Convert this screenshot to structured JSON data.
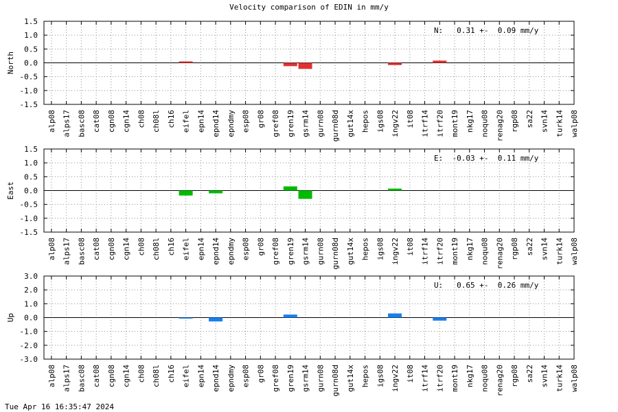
{
  "page": {
    "title": "Velocity comparison of EDIN in mm/y",
    "timestamp": "Tue Apr 16 16:35:47 2024"
  },
  "chart_data": [
    {
      "type": "bar",
      "ylabel": "North",
      "ylim": [
        -1.5,
        1.5
      ],
      "yticks": [
        "1.5",
        "1.0",
        "0.5",
        "0.0",
        "-0.5",
        "-1.0",
        "-1.5"
      ],
      "annotation": "N:   0.31 +-  0.09 mm/y",
      "color": "#e03131",
      "grid": true,
      "categories": [
        "alp08",
        "alps17",
        "basc08",
        "cat08",
        "cgn08",
        "cgn14",
        "ch08",
        "ch08l",
        "ch16",
        "eifel",
        "epn14",
        "epnd14",
        "epndmy",
        "esp08",
        "gr08",
        "gref08",
        "gren19",
        "gsrm14",
        "gurn08",
        "gurn08d",
        "gut14x",
        "hepos",
        "igs08",
        "ingv22",
        "it08",
        "itrf14",
        "itrf20",
        "mont19",
        "nkg17",
        "noqu08",
        "renag20",
        "rgp08",
        "sa22",
        "svn14",
        "turk14",
        "walp08"
      ],
      "values": [
        0,
        0,
        0,
        0,
        0,
        0,
        0,
        0,
        0,
        0.05,
        0,
        0,
        0,
        0,
        0,
        0,
        -0.12,
        -0.22,
        0,
        0,
        0,
        0,
        0,
        -0.08,
        0,
        0,
        0.08,
        0,
        0,
        0,
        0,
        0,
        0,
        0,
        0,
        0
      ]
    },
    {
      "type": "bar",
      "ylabel": "East",
      "ylim": [
        -1.5,
        1.5
      ],
      "yticks": [
        "1.5",
        "1.0",
        "0.5",
        "0.0",
        "-0.5",
        "-1.0",
        "-1.5"
      ],
      "annotation": "E:  -0.03 +-  0.11 mm/y",
      "color": "#00bb00",
      "grid": true,
      "categories": [
        "alp08",
        "alps17",
        "basc08",
        "cat08",
        "cgn08",
        "cgn14",
        "ch08",
        "ch08l",
        "ch16",
        "eifel",
        "epn14",
        "epnd14",
        "epndmy",
        "esp08",
        "gr08",
        "gref08",
        "gren19",
        "gsrm14",
        "gurn08",
        "gurn08d",
        "gut14x",
        "hepos",
        "igs08",
        "ingv22",
        "it08",
        "itrf14",
        "itrf20",
        "mont19",
        "nkg17",
        "noqu08",
        "renag20",
        "rgp08",
        "sa22",
        "svn14",
        "turk14",
        "walp08"
      ],
      "values": [
        0,
        0,
        0,
        0,
        0,
        0,
        0,
        0,
        0,
        -0.18,
        0,
        -0.1,
        0,
        0,
        0,
        0,
        0.15,
        -0.3,
        0,
        0,
        0,
        0,
        0,
        0.07,
        0,
        0,
        0,
        0,
        0,
        0,
        0,
        0,
        0,
        0,
        0,
        0
      ]
    },
    {
      "type": "bar",
      "ylabel": "Up",
      "ylim": [
        -3.0,
        3.0
      ],
      "yticks": [
        "3.0",
        "2.0",
        "1.0",
        "0.0",
        "-1.0",
        "-2.0",
        "-3.0"
      ],
      "annotation": "U:   0.65 +-  0.26 mm/y",
      "color": "#1a80ee",
      "grid": true,
      "categories": [
        "alp08",
        "alps17",
        "basc08",
        "cat08",
        "cgn08",
        "cgn14",
        "ch08",
        "ch08l",
        "ch16",
        "eifel",
        "epn14",
        "epnd14",
        "epndmy",
        "esp08",
        "gr08",
        "gref08",
        "gren19",
        "gsrm14",
        "gurn08",
        "gurn08d",
        "gut14x",
        "hepos",
        "igs08",
        "ingv22",
        "it08",
        "itrf14",
        "itrf20",
        "mont19",
        "nkg17",
        "noqu08",
        "renag20",
        "rgp08",
        "sa22",
        "svn14",
        "turk14",
        "walp08"
      ],
      "values": [
        0,
        0,
        0,
        0,
        0,
        0,
        0,
        0,
        0,
        -0.07,
        0,
        -0.28,
        0,
        0,
        0,
        0,
        0.22,
        0,
        0,
        0,
        0,
        0,
        0,
        0.3,
        0,
        0,
        -0.22,
        0,
        0,
        0,
        0,
        0,
        0,
        0,
        0,
        0
      ]
    }
  ]
}
